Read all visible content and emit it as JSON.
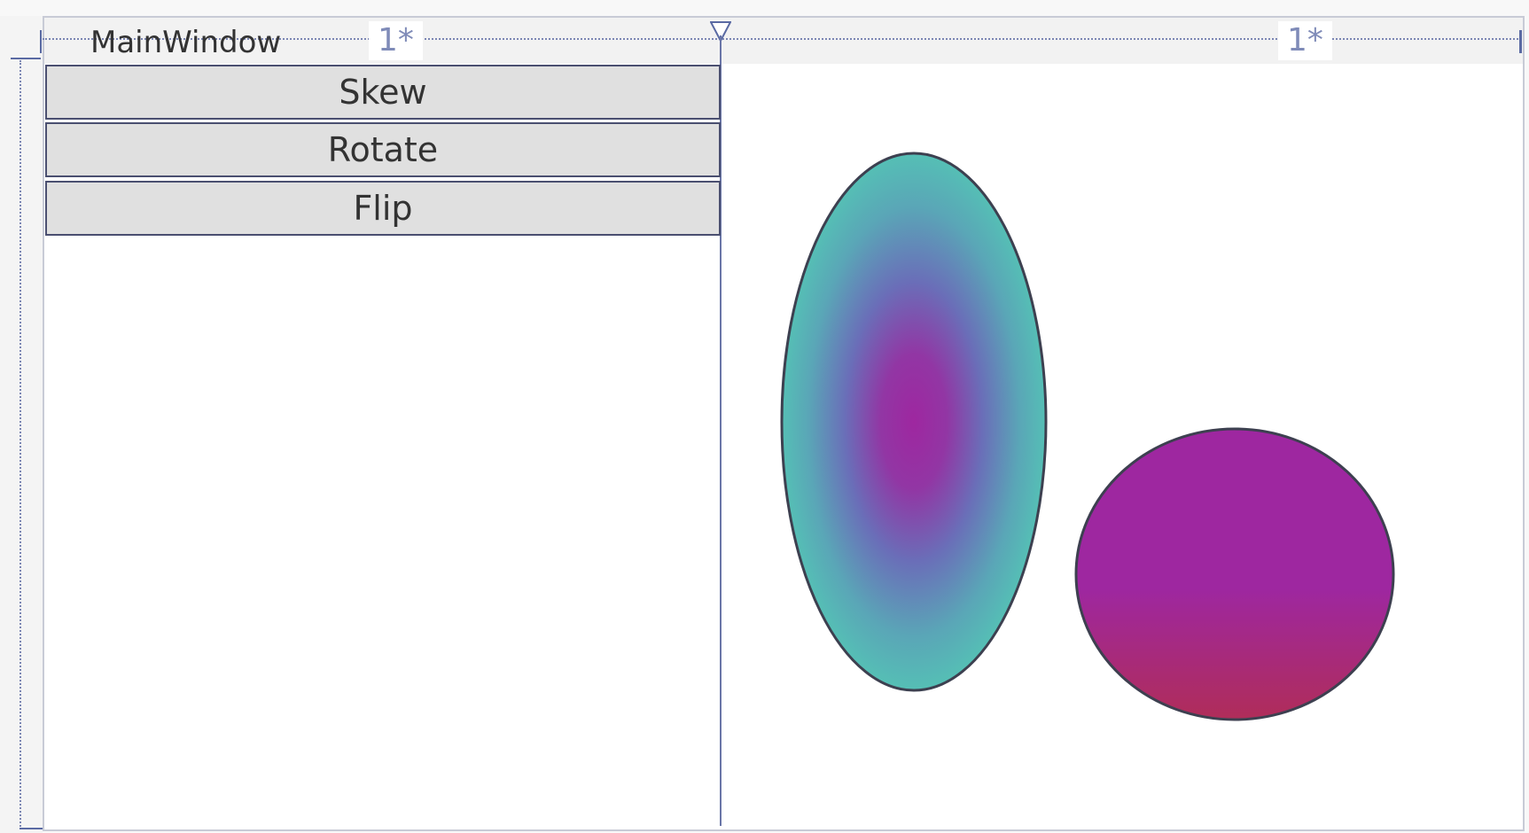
{
  "window": {
    "title": "MainWindow"
  },
  "grid": {
    "column_left_width": "1*",
    "column_right_width": "1*"
  },
  "buttons": {
    "skew_label": "Skew",
    "rotate_label": "Rotate",
    "flip_label": "Flip"
  },
  "colors": {
    "teal": "#55bfb5",
    "blue_violet": "#6a6eb8",
    "magenta": "#9e27a0",
    "crimson": "#b02d59",
    "outline": "#3d4050",
    "button_face": "#e0e0e0",
    "guide": "#7b86b3"
  }
}
